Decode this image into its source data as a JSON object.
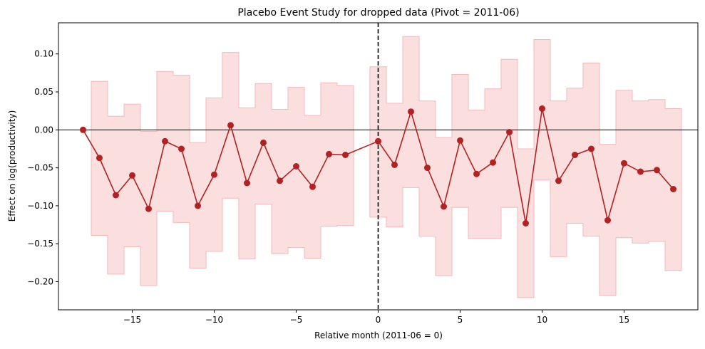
{
  "chart_data": {
    "type": "line",
    "title": "Placebo Event Study for dropped data (Pivot = 2011-06)",
    "xlabel": "Relative month (2011-06 = 0)",
    "ylabel": "Effect on log(productivity)",
    "xlim": [
      -19.5,
      19.5
    ],
    "ylim": [
      -0.237,
      0.141
    ],
    "xticks": [
      -15,
      -10,
      -5,
      0,
      5,
      10,
      15
    ],
    "xtick_labels": [
      "−15",
      "−10",
      "−5",
      "0",
      "5",
      "10",
      "15"
    ],
    "yticks": [
      -0.2,
      -0.15,
      -0.1,
      -0.05,
      0.0,
      0.05,
      0.1
    ],
    "ytick_labels": [
      "−0.20",
      "−0.15",
      "−0.10",
      "−0.05",
      "0.00",
      "0.05",
      "0.10"
    ],
    "hline": 0,
    "vline": 0,
    "grid": false,
    "colors": {
      "line": "#b22222",
      "band": "#f4a7a8",
      "band_edge": "#f2b9bb"
    },
    "x": [
      -18,
      -17,
      -16,
      -15,
      -14,
      -13,
      -12,
      -11,
      -10,
      -9,
      -8,
      -7,
      -6,
      -5,
      -4,
      -3,
      -2,
      -1,
      0,
      1,
      2,
      3,
      4,
      5,
      6,
      7,
      8,
      9,
      10,
      11,
      12,
      13,
      14,
      15,
      16,
      17,
      18
    ],
    "y": [
      0.0,
      -0.037,
      -0.086,
      -0.06,
      -0.104,
      -0.015,
      -0.025,
      -0.1,
      -0.059,
      0.006,
      -0.07,
      -0.017,
      -0.067,
      -0.048,
      -0.075,
      -0.032,
      -0.033,
      null,
      -0.015,
      -0.046,
      0.024,
      -0.05,
      -0.101,
      -0.014,
      -0.058,
      -0.043,
      -0.003,
      -0.123,
      0.028,
      -0.067,
      -0.033,
      -0.025,
      -0.119,
      -0.044,
      -0.055,
      -0.053,
      -0.078
    ],
    "ci_lower": [
      null,
      -0.139,
      -0.19,
      -0.154,
      -0.205,
      -0.107,
      -0.122,
      -0.182,
      -0.16,
      -0.09,
      -0.17,
      -0.098,
      -0.163,
      -0.155,
      -0.169,
      -0.127,
      -0.126,
      null,
      -0.115,
      -0.128,
      -0.076,
      -0.14,
      -0.192,
      -0.102,
      -0.143,
      -0.143,
      -0.102,
      -0.221,
      -0.066,
      -0.167,
      -0.123,
      -0.14,
      -0.218,
      -0.142,
      -0.149,
      -0.147,
      -0.185
    ],
    "ci_upper": [
      null,
      0.064,
      0.018,
      0.034,
      -0.002,
      0.077,
      0.072,
      -0.017,
      0.042,
      0.102,
      0.029,
      0.061,
      0.027,
      0.056,
      0.019,
      0.062,
      0.058,
      null,
      0.083,
      0.035,
      0.123,
      0.038,
      -0.01,
      0.073,
      0.026,
      0.054,
      0.093,
      -0.025,
      0.119,
      0.038,
      0.055,
      0.088,
      -0.019,
      0.052,
      0.038,
      0.04,
      0.028
    ]
  }
}
